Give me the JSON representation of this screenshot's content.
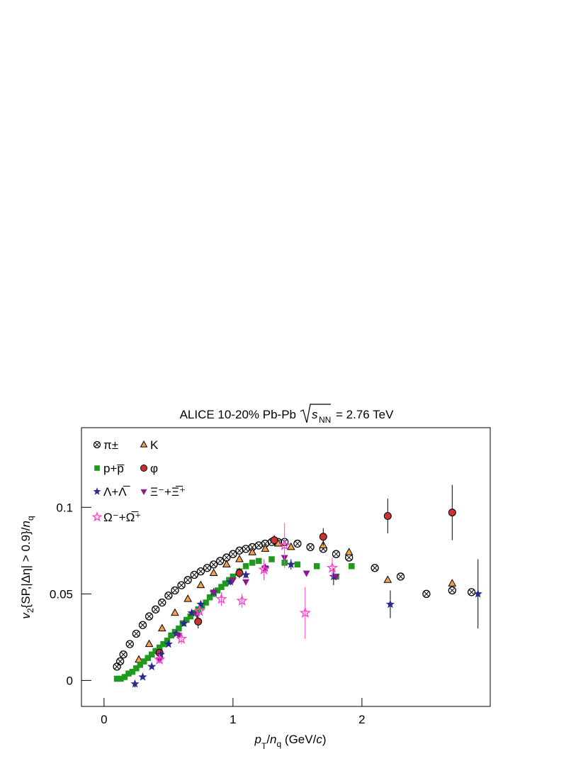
{
  "chart_data": {
    "type": "scatter",
    "title": "ALICE 10-20% Pb-Pb",
    "title_energy_symbol": "s",
    "title_energy_subscript": "NN",
    "title_energy": "= 2.76 TeV",
    "x_label": [
      "p",
      "T",
      "/",
      "n",
      "q",
      " (GeV/",
      "c",
      ")"
    ],
    "y_label": [
      "v",
      "2",
      "{SP,|Δη| > 0.9}/",
      "n",
      "q"
    ],
    "xlim": [
      -0.175,
      2.995
    ],
    "ylim": [
      -0.015,
      0.146
    ],
    "xticks": [
      0,
      1,
      2
    ],
    "yticks": [
      0,
      0.05,
      0.1
    ],
    "series": [
      {
        "name": "π±",
        "color": "#000000",
        "x": [
          0.1,
          0.125,
          0.15,
          0.2,
          0.25,
          0.3,
          0.35,
          0.4,
          0.45,
          0.5,
          0.55,
          0.6,
          0.65,
          0.7,
          0.75,
          0.8,
          0.85,
          0.9,
          0.95,
          1.0,
          1.05,
          1.1,
          1.15,
          1.2,
          1.25,
          1.3,
          1.35,
          1.4,
          1.5,
          1.6,
          1.7,
          1.8,
          1.9,
          2.1,
          2.3,
          2.5,
          2.7,
          2.85
        ],
        "values": [
          0.008,
          0.011,
          0.015,
          0.021,
          0.027,
          0.032,
          0.037,
          0.041,
          0.045,
          0.049,
          0.052,
          0.055,
          0.058,
          0.061,
          0.063,
          0.065,
          0.067,
          0.069,
          0.071,
          0.073,
          0.075,
          0.076,
          0.077,
          0.078,
          0.079,
          0.08,
          0.08,
          0.08,
          0.079,
          0.077,
          0.076,
          0.073,
          0.071,
          0.065,
          0.06,
          0.05,
          0.052,
          0.051
        ]
      },
      {
        "name": "K",
        "color": "#f5a04a",
        "x": [
          0.27,
          0.35,
          0.45,
          0.55,
          0.65,
          0.75,
          0.85,
          0.95,
          1.05,
          1.15,
          1.25,
          1.35,
          1.45,
          1.7,
          1.9,
          2.2,
          2.7
        ],
        "values": [
          0.012,
          0.021,
          0.03,
          0.039,
          0.047,
          0.055,
          0.062,
          0.067,
          0.07,
          0.074,
          0.076,
          0.079,
          0.077,
          0.078,
          0.074,
          0.058,
          0.056
        ]
      },
      {
        "name": "p+p̅",
        "color": "#1f9a1f",
        "x": [
          0.1,
          0.13,
          0.16,
          0.19,
          0.22,
          0.25,
          0.28,
          0.31,
          0.34,
          0.37,
          0.4,
          0.43,
          0.46,
          0.49,
          0.52,
          0.55,
          0.58,
          0.61,
          0.64,
          0.67,
          0.7,
          0.73,
          0.76,
          0.79,
          0.82,
          0.85,
          0.88,
          0.91,
          0.94,
          0.97,
          1.0,
          1.05,
          1.1,
          1.15,
          1.2,
          1.3,
          1.4,
          1.5,
          1.65,
          1.8,
          1.92
        ],
        "values": [
          0.001,
          0.001,
          0.002,
          0.004,
          0.005,
          0.007,
          0.009,
          0.011,
          0.013,
          0.015,
          0.017,
          0.019,
          0.021,
          0.023,
          0.026,
          0.028,
          0.03,
          0.033,
          0.035,
          0.037,
          0.039,
          0.041,
          0.043,
          0.045,
          0.048,
          0.05,
          0.052,
          0.054,
          0.056,
          0.058,
          0.06,
          0.063,
          0.066,
          0.068,
          0.069,
          0.07,
          0.068,
          0.067,
          0.066,
          0.06,
          0.066
        ]
      },
      {
        "name": "φ",
        "color": "#c83232",
        "x": [
          0.43,
          0.73,
          1.05,
          1.32,
          1.7,
          2.2,
          2.7
        ],
        "values": [
          0.016,
          0.034,
          0.062,
          0.081,
          0.083,
          0.095,
          0.097
        ],
        "errors": [
          0.002,
          0.004,
          0.003,
          0.003,
          0.005,
          0.01,
          0.016
        ]
      },
      {
        "name": "Λ+Λ̅",
        "color": "#2b2b8f",
        "x": [
          0.24,
          0.3,
          0.37,
          0.44,
          0.5,
          0.56,
          0.62,
          0.68,
          0.75,
          0.85,
          0.98,
          1.1,
          1.25,
          1.45,
          1.78,
          2.22,
          2.9
        ],
        "values": [
          -0.002,
          0.002,
          0.008,
          0.015,
          0.021,
          0.027,
          0.033,
          0.039,
          0.044,
          0.051,
          0.057,
          0.061,
          0.065,
          0.067,
          0.06,
          0.044,
          0.05
        ],
        "errors": [
          0.002,
          0.001,
          0.001,
          0.001,
          0.001,
          0.001,
          0.001,
          0.001,
          0.001,
          0.001,
          0.002,
          0.002,
          0.002,
          0.003,
          0.005,
          0.008,
          0.02
        ]
      },
      {
        "name": "Ξ⁻+Ξ̅⁺",
        "color": "#8a1a8a",
        "x": [
          0.43,
          0.58,
          0.72,
          0.85,
          1.0,
          1.1,
          1.25,
          1.4,
          1.57,
          1.8
        ],
        "values": [
          0.012,
          0.026,
          0.038,
          0.051,
          0.058,
          0.057,
          0.065,
          0.071,
          0.062,
          0.06
        ]
      },
      {
        "name": "Ω⁻+Ω̅⁺",
        "color": "#ff44cc",
        "x": [
          0.43,
          0.6,
          0.74,
          0.91,
          1.07,
          1.24,
          1.4,
          1.56,
          1.77
        ],
        "values": [
          0.012,
          0.024,
          0.04,
          0.047,
          0.046,
          0.064,
          0.078,
          0.039,
          0.065
        ],
        "errors": [
          0.002,
          0.003,
          0.003,
          0.004,
          0.004,
          0.006,
          0.013,
          0.015,
          0.006
        ]
      }
    ]
  }
}
